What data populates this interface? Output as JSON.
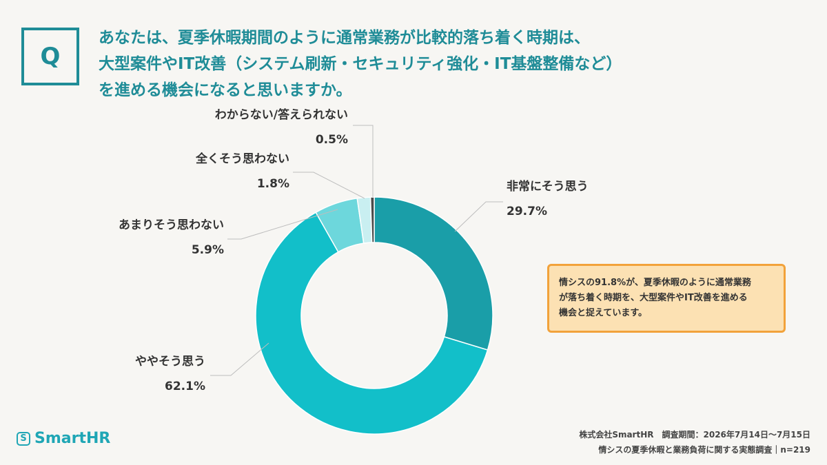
{
  "question": {
    "marker": "Q",
    "lines": [
      "あなたは、夏季休暇期間のように通常業務が比較的落ち着く時期は、",
      "大型案件やIT改善（システム刷新・セキュリティ強化・IT基盤整備など）",
      "を進める機会になると思いますか。"
    ]
  },
  "chart_data": {
    "type": "pie",
    "variant": "donut",
    "categories": [
      "非常にそう思う",
      "ややそう思う",
      "あまりそう思わない",
      "全くそう思わない",
      "わからない/答えられない"
    ],
    "values": [
      29.7,
      62.1,
      5.9,
      1.8,
      0.5
    ],
    "value_labels": [
      "29.7%",
      "62.1%",
      "5.9%",
      "1.8%",
      "0.5%"
    ],
    "colors": [
      "#1a9ea8",
      "#12bfc9",
      "#6dd7dc",
      "#c9eff1",
      "#4a4a4a"
    ],
    "title": ""
  },
  "callout": {
    "lines": [
      "情シスの91.8%が、夏季休暇のように通常業務",
      "が落ち着く時期を、大型案件やIT改善を進める",
      "機会と捉えています。"
    ]
  },
  "logo": {
    "icon": "smarthr-logo-icon",
    "mark": "S",
    "text": "SmartHR"
  },
  "source": {
    "line1": "株式会社SmartHR　調査期間：2026年7月14日〜7月15日",
    "line2": "情シスの夏季休暇と業務負荷に関する実態調査｜n=219"
  }
}
